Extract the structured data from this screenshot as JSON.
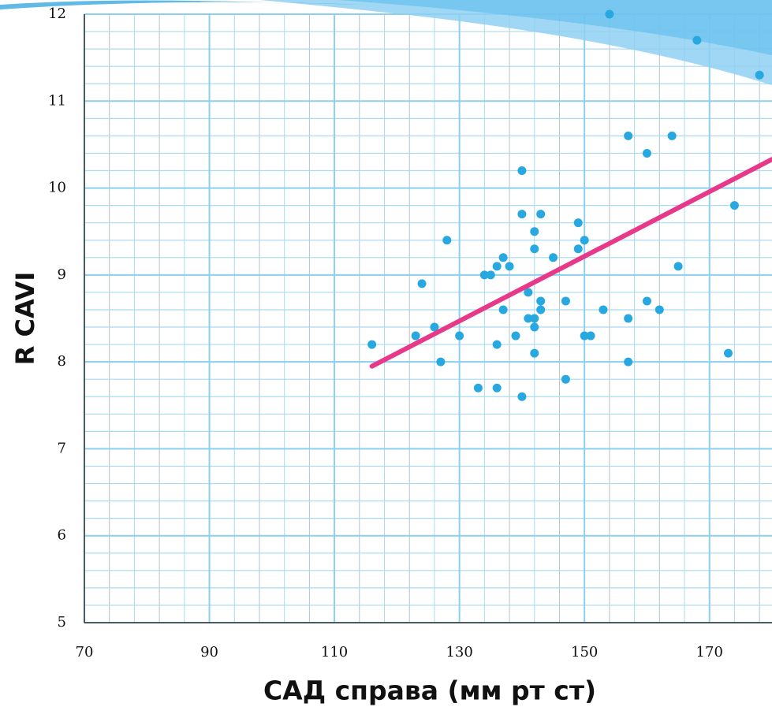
{
  "chart_data": {
    "type": "scatter",
    "x_label": "САД справа (мм рт ст)",
    "y_label": "R CAVI",
    "xlim": [
      70,
      180
    ],
    "ylim": [
      5,
      12
    ],
    "xticks": [
      70,
      90,
      110,
      130,
      150,
      170
    ],
    "yticks": [
      5,
      6,
      7,
      8,
      9,
      10,
      11,
      12
    ],
    "grid": true,
    "color": "#27a8e0",
    "x": [
      116,
      123,
      124,
      126,
      127,
      128,
      130,
      133,
      134,
      135,
      136,
      136,
      136,
      137,
      137,
      138,
      139,
      140,
      140,
      140,
      141,
      141,
      142,
      142,
      142,
      142,
      142,
      143,
      143,
      143,
      145,
      147,
      147,
      149,
      149,
      150,
      150,
      151,
      153,
      157,
      157,
      157,
      160,
      160,
      162,
      164,
      165,
      173,
      174,
      154,
      168,
      178
    ],
    "values": [
      8.2,
      8.3,
      8.9,
      8.4,
      8.0,
      9.4,
      8.3,
      7.7,
      9.0,
      9.0,
      9.1,
      8.2,
      7.7,
      9.2,
      8.6,
      9.1,
      8.3,
      10.2,
      9.7,
      7.6,
      8.5,
      8.8,
      9.5,
      9.3,
      8.5,
      8.4,
      8.1,
      9.7,
      8.7,
      8.6,
      9.2,
      8.7,
      7.8,
      9.6,
      9.3,
      9.4,
      8.3,
      8.3,
      8.6,
      10.6,
      8.5,
      8.0,
      10.4,
      8.7,
      8.6,
      10.6,
      9.1,
      8.1,
      9.8,
      12.0,
      11.7,
      11.3
    ],
    "trendline": {
      "color": "#e8388a",
      "x": [
        116,
        180
      ],
      "values": [
        7.95,
        10.33
      ]
    }
  }
}
